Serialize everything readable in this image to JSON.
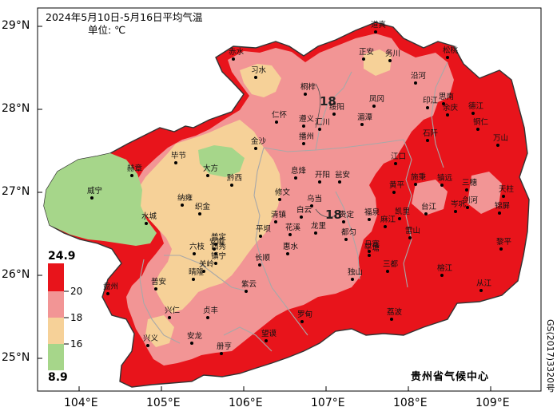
{
  "title": "2024年5月10日-5月16日平均气温",
  "unit_label": "单位: ℃",
  "credit": "贵州省气候中心",
  "approval_number": "GS(2017)3320号",
  "y_axis_labels": [
    "29°N",
    "28°N",
    "27°N",
    "26°N",
    "25°N"
  ],
  "x_axis_labels": [
    "104°E",
    "105°E",
    "106°E",
    "107°E",
    "108°E",
    "109°E"
  ],
  "legend": {
    "max_label": "24.9",
    "min_label": "8.9",
    "thresholds": [
      "20",
      "18",
      "16"
    ],
    "colors": [
      "#e8141b",
      "#f29595",
      "#f6d198",
      "#a6d68a"
    ]
  },
  "isotherm_labels": [
    "18",
    "18"
  ],
  "cities": [
    "道真",
    "赤水",
    "习水",
    "正安",
    "务川",
    "沿河",
    "桐梓",
    "绥阳",
    "凤冈",
    "印江",
    "思南",
    "湄潭",
    "遵义",
    "余庆",
    "石阡",
    "汇川",
    "播州",
    "江口",
    "松桃",
    "铜仁",
    "万山",
    "金沙",
    "德江",
    "仁怀",
    "毕节",
    "大方",
    "黔西",
    "赫章",
    "息烽",
    "开阳",
    "瓮安",
    "威宁",
    "纳雍",
    "织金",
    "修文",
    "乌当",
    "白云",
    "贵定",
    "福泉",
    "施秉",
    "镇远",
    "三穗",
    "岑巩",
    "天柱",
    "锦屏",
    "剑河",
    "台江",
    "雷山",
    "黄平",
    "凯里",
    "麻江",
    "丹寨",
    "榕江",
    "从江",
    "黎平",
    "水城",
    "六枝",
    "普定",
    "安顺",
    "平坝",
    "清镇",
    "花溪",
    "龙里",
    "都匀",
    "惠水",
    "长顺",
    "平塘",
    "独山",
    "三都",
    "荔波",
    "镇宁",
    "关岭",
    "紫云",
    "晴隆",
    "普安",
    "盘州",
    "兴仁",
    "贞丰",
    "安龙",
    "望谟",
    "罗甸",
    "兴义",
    "册亨",
    "西秀"
  ]
}
